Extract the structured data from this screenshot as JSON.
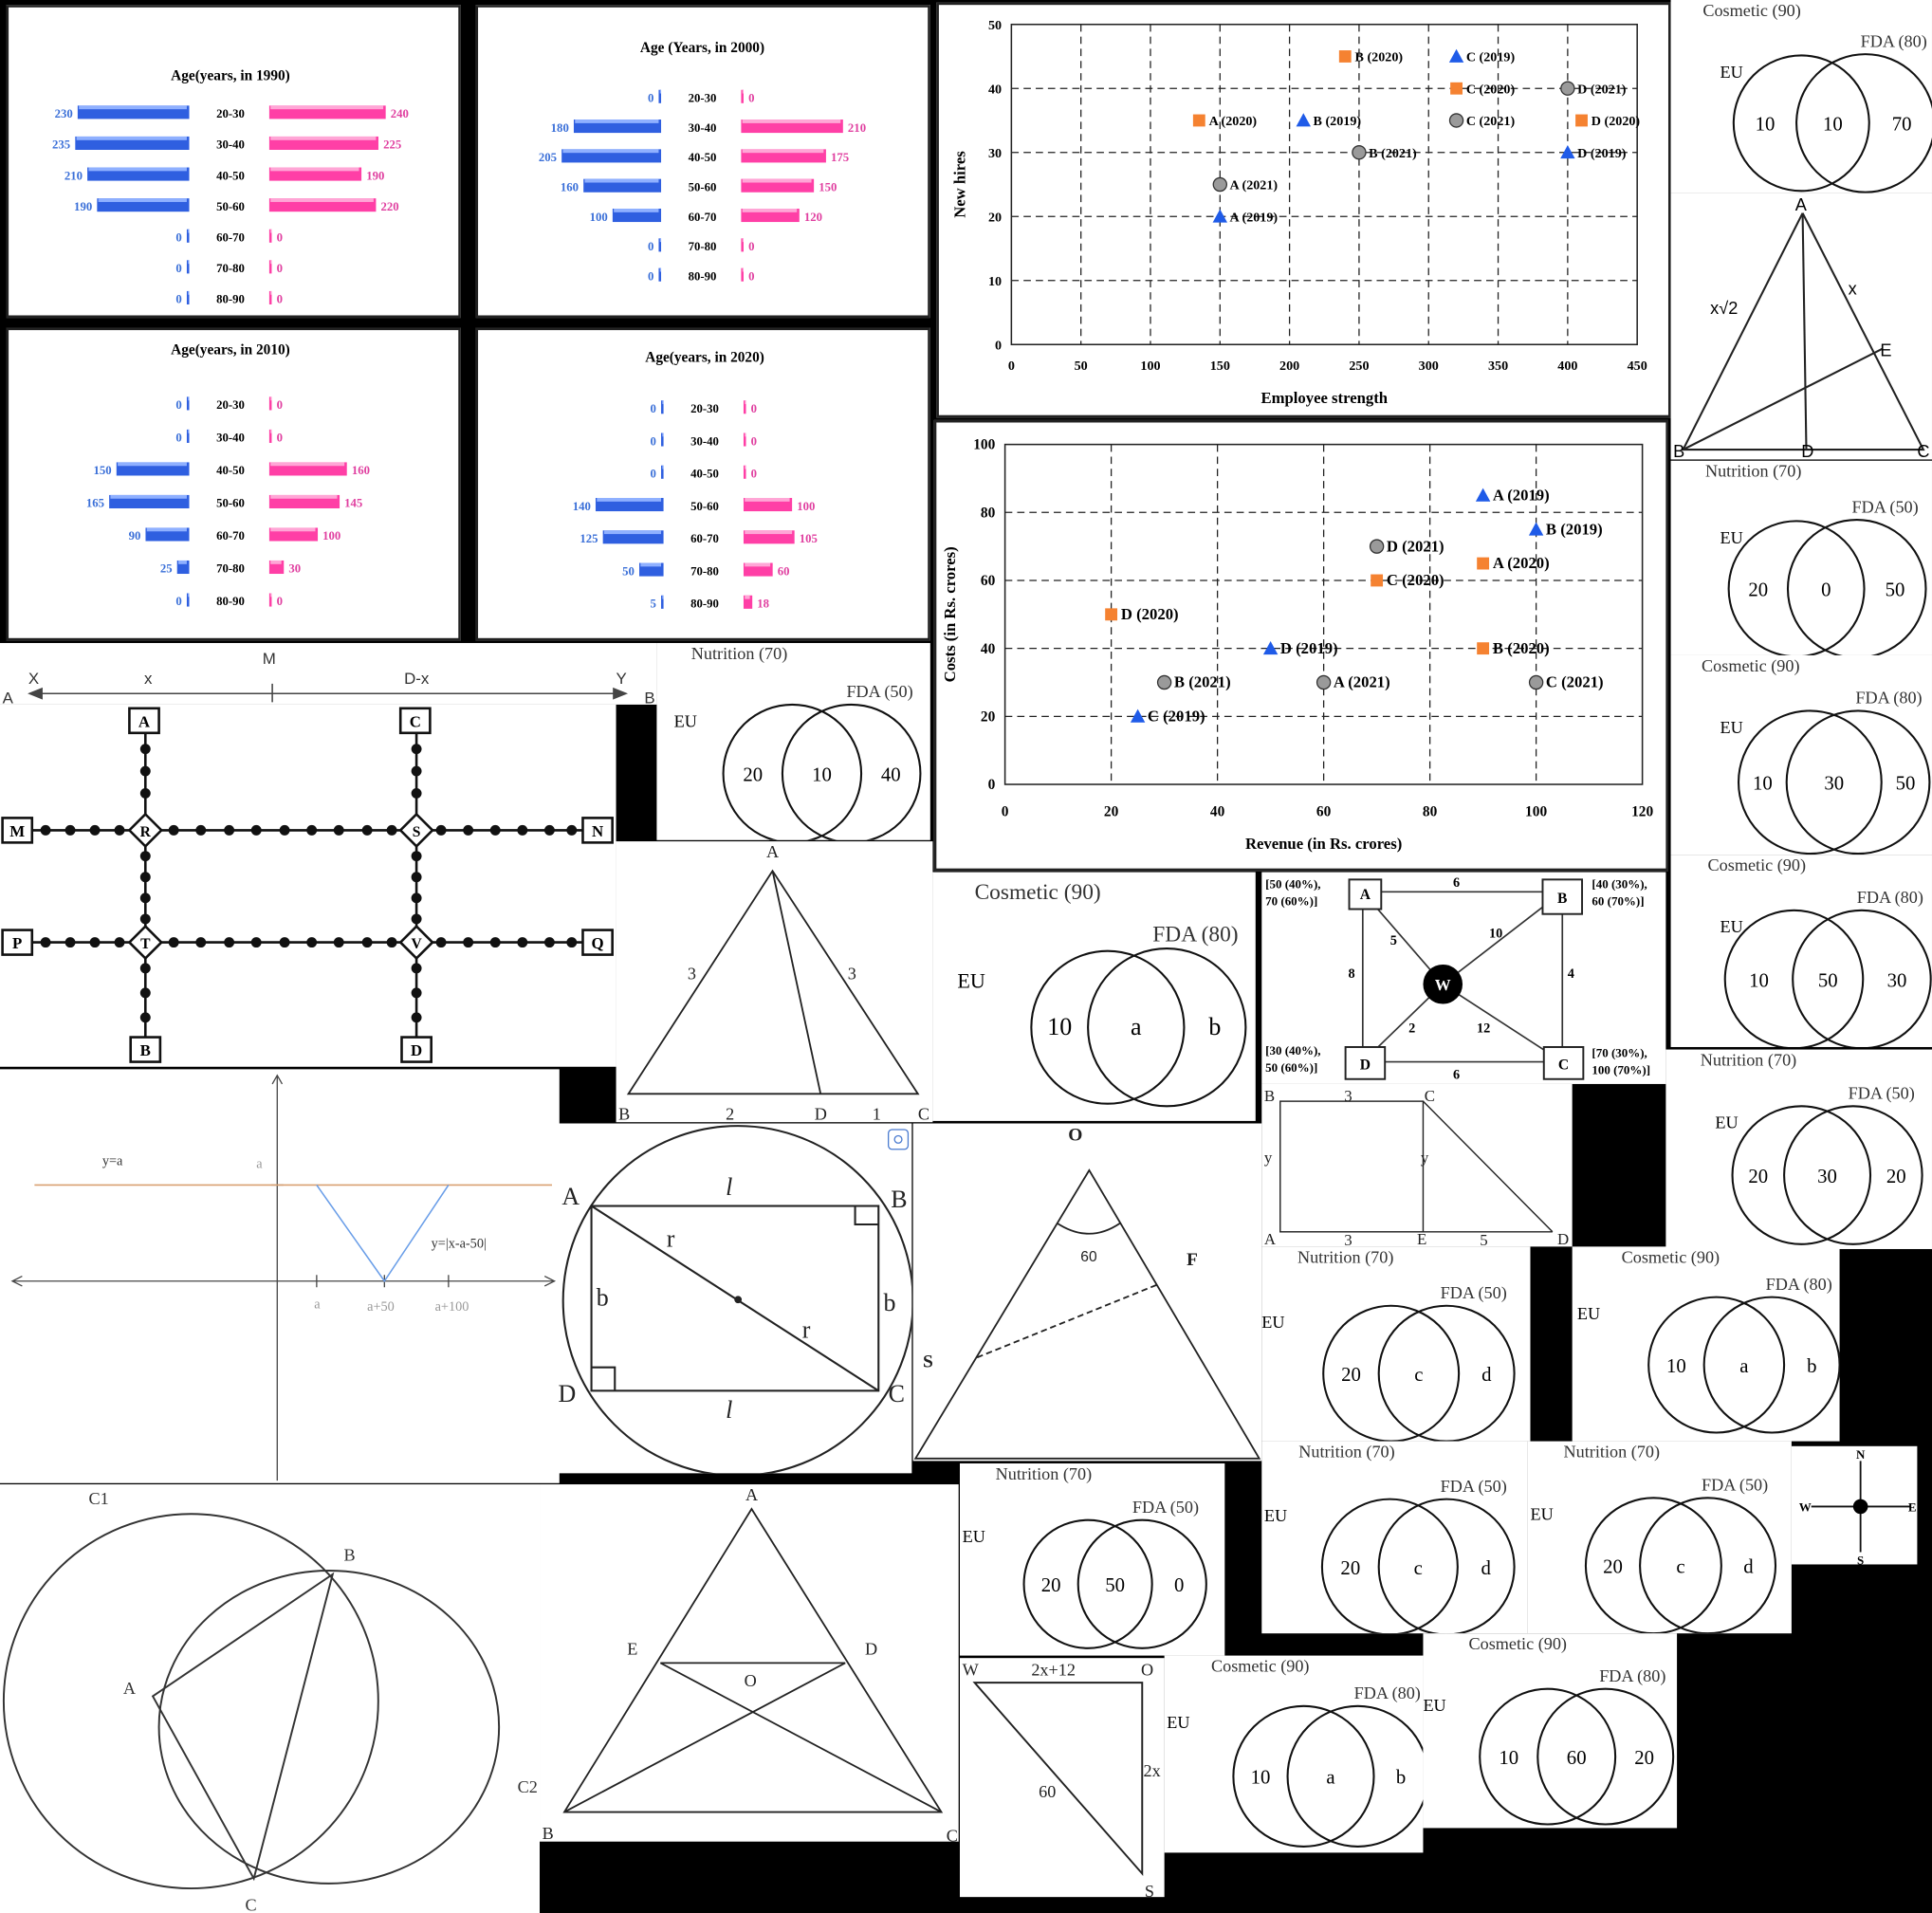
{
  "pyramids": [
    {
      "title": "Age(years, in 1990)",
      "groups": [
        "20-30",
        "30-40",
        "40-50",
        "50-60",
        "60-70",
        "70-80",
        "80-90"
      ],
      "left": [
        230,
        235,
        210,
        190,
        0,
        0,
        0
      ],
      "right": [
        240,
        225,
        190,
        220,
        0,
        0,
        0
      ]
    },
    {
      "title": "Age (Years, in 2000)",
      "groups": [
        "20-30",
        "30-40",
        "40-50",
        "50-60",
        "60-70",
        "70-80",
        "80-90"
      ],
      "left": [
        0,
        180,
        205,
        160,
        100,
        0,
        0
      ],
      "right": [
        0,
        210,
        175,
        150,
        120,
        0,
        0
      ]
    },
    {
      "title": "Age(years, in 2010)",
      "groups": [
        "20-30",
        "30-40",
        "40-50",
        "50-60",
        "60-70",
        "70-80",
        "80-90"
      ],
      "left": [
        0,
        0,
        150,
        165,
        90,
        25,
        0
      ],
      "right": [
        0,
        0,
        160,
        145,
        100,
        30,
        0
      ]
    },
    {
      "title": "Age(years, in 2020)",
      "groups": [
        "20-30",
        "30-40",
        "40-50",
        "50-60",
        "60-70",
        "70-80",
        "80-90"
      ],
      "left": [
        0,
        0,
        0,
        140,
        125,
        50,
        5
      ],
      "right": [
        0,
        0,
        0,
        100,
        105,
        60,
        18
      ]
    }
  ],
  "chart_data": [
    {
      "type": "scatter",
      "xlabel": "Employee strength",
      "ylabel": "New hires",
      "xlim": [
        0,
        450
      ],
      "ylim": [
        0,
        50
      ],
      "xticks": [
        0,
        50,
        100,
        150,
        200,
        250,
        300,
        350,
        400,
        450
      ],
      "yticks": [
        0,
        10,
        20,
        30,
        40,
        50
      ],
      "grid": true,
      "points": [
        {
          "label": "A (2019)",
          "x": 150,
          "y": 20,
          "year": 2019
        },
        {
          "label": "A (2020)",
          "x": 135,
          "y": 35,
          "year": 2020
        },
        {
          "label": "A (2021)",
          "x": 150,
          "y": 25,
          "year": 2021
        },
        {
          "label": "B (2019)",
          "x": 210,
          "y": 35,
          "year": 2019
        },
        {
          "label": "B (2020)",
          "x": 240,
          "y": 45,
          "year": 2020
        },
        {
          "label": "B (2021)",
          "x": 250,
          "y": 30,
          "year": 2021
        },
        {
          "label": "C (2019)",
          "x": 320,
          "y": 45,
          "year": 2019
        },
        {
          "label": "C (2020)",
          "x": 320,
          "y": 40,
          "year": 2020
        },
        {
          "label": "C (2021)",
          "x": 320,
          "y": 35,
          "year": 2021
        },
        {
          "label": "D (2019)",
          "x": 400,
          "y": 30,
          "year": 2019
        },
        {
          "label": "D (2020)",
          "x": 410,
          "y": 35,
          "year": 2020
        },
        {
          "label": "D (2021)",
          "x": 400,
          "y": 40,
          "year": 2021
        }
      ]
    },
    {
      "type": "scatter",
      "xlabel": "Revenue (in Rs. crores)",
      "ylabel": "Costs (in Rs. crores)",
      "xlim": [
        0,
        120
      ],
      "ylim": [
        0,
        100
      ],
      "xticks": [
        0,
        20,
        40,
        60,
        80,
        100,
        120
      ],
      "yticks": [
        0,
        20,
        40,
        60,
        80,
        100
      ],
      "grid": true,
      "points": [
        {
          "label": "A (2019)",
          "x": 90,
          "y": 85,
          "year": 2019
        },
        {
          "label": "A (2020)",
          "x": 90,
          "y": 65,
          "year": 2020
        },
        {
          "label": "A (2021)",
          "x": 60,
          "y": 30,
          "year": 2021
        },
        {
          "label": "B (2019)",
          "x": 100,
          "y": 75,
          "year": 2019
        },
        {
          "label": "B (2020)",
          "x": 90,
          "y": 40,
          "year": 2020
        },
        {
          "label": "B (2021)",
          "x": 30,
          "y": 30,
          "year": 2021
        },
        {
          "label": "C (2019)",
          "x": 25,
          "y": 20,
          "year": 2019
        },
        {
          "label": "C (2020)",
          "x": 70,
          "y": 60,
          "year": 2020
        },
        {
          "label": "C (2021)",
          "x": 100,
          "y": 30,
          "year": 2021
        },
        {
          "label": "D (2019)",
          "x": 50,
          "y": 40,
          "year": 2019
        },
        {
          "label": "D (2020)",
          "x": 20,
          "y": 50,
          "year": 2020
        },
        {
          "label": "D (2021)",
          "x": 70,
          "y": 70,
          "year": 2021
        }
      ]
    }
  ],
  "colors": {
    "male": "#2f5fe0",
    "female": "#ff3fa6",
    "male_label": "#3a6fd8",
    "female_label": "#e040a0",
    "y2019": "#1f5be8",
    "y2020": "#f58231",
    "y2021": "#9a9a9a"
  },
  "venn": {
    "t1": {
      "title": "Cosmetic (90)",
      "left": "EU",
      "right": "FDA (80)",
      "a": "10",
      "b": "10",
      "c": "70"
    },
    "t2": {
      "title": "Nutrition (70)",
      "left": "EU",
      "right": "FDA (50)",
      "a": "20",
      "b": "0",
      "c": "50"
    },
    "t3": {
      "title": "Cosmetic (90)",
      "left": "EU",
      "right": "FDA (80)",
      "a": "10",
      "b": "30",
      "c": "50"
    },
    "t4": {
      "title": "Cosmetic (90)",
      "left": "EU",
      "right": "FDA (80)",
      "a": "10",
      "b": "50",
      "c": "30"
    },
    "t5": {
      "title": "Nutrition (70)",
      "left": "EU",
      "right": "FDA (50)",
      "a": "20",
      "b": "30",
      "c": "20"
    },
    "t6": {
      "title": "Nutrition (70)",
      "left": "EU",
      "right": "FDA (50)",
      "a": "20",
      "b": "10",
      "c": "40"
    },
    "t7": {
      "title": "Cosmetic (90)",
      "left": "EU",
      "right": "FDA (80)",
      "a": "10",
      "b": "a",
      "c": "b"
    },
    "t8": {
      "title": "Nutrition (70)",
      "left": "EU",
      "right": "FDA (50)",
      "a": "20",
      "b": "c",
      "c": "d"
    },
    "t9": {
      "title": "Cosmetic (90)",
      "left": "EU",
      "right": "FDA (80)",
      "a": "10",
      "b": "a",
      "c": "b"
    },
    "t10": {
      "title": "Nutrition (70)",
      "left": "EU",
      "right": "FDA (50)",
      "a": "20",
      "b": "50",
      "c": "0"
    },
    "t11": {
      "title": "Nutrition (70)",
      "left": "EU",
      "right": "FDA (50)",
      "a": "20",
      "b": "c",
      "c": "d"
    },
    "t12": {
      "title": "Nutrition (70)",
      "left": "EU",
      "right": "FDA (50)",
      "a": "20",
      "b": "c",
      "c": "d"
    },
    "t13": {
      "title": "Cosmetic (90)",
      "left": "EU",
      "right": "FDA (80)",
      "a": "10",
      "b": "a",
      "c": "b"
    },
    "t14": {
      "title": "Cosmetic (90)",
      "left": "EU",
      "right": "FDA (80)",
      "a": "10",
      "b": "60",
      "c": "20"
    }
  },
  "tri_x": {
    "A": "A",
    "B": "B",
    "C": "C",
    "D": "D",
    "E": "E",
    "left": "x√2",
    "right": "x"
  },
  "segment": {
    "A": "A",
    "B": "B",
    "X": "X",
    "Y": "Y",
    "M": "M",
    "x": "x",
    "dx": "D-x"
  },
  "grid_map": {
    "A": "A",
    "C": "C",
    "M": "M",
    "N": "N",
    "P": "P",
    "Q": "Q",
    "B": "B",
    "D": "D",
    "R": "R",
    "S": "S",
    "T": "T",
    "V": "V"
  },
  "tri_abc": {
    "A": "A",
    "B": "B",
    "C": "C",
    "D": "D",
    "s1": "3",
    "s2": "3",
    "b1": "2",
    "b2": "1"
  },
  "network": {
    "A": "A",
    "B": "B",
    "C": "C",
    "D": "D",
    "W": "W",
    "ab": "6",
    "bc": "4",
    "cd": "6",
    "da": "8",
    "aw": "5",
    "bw": "10",
    "cw": "12",
    "dw": "2",
    "ann_a": [
      "[50 (40%),",
      "70  (60%)]"
    ],
    "ann_b": [
      "[40 (30%),",
      "60 (70%)]"
    ],
    "ann_d": [
      "[30 (40%),",
      "50 (60%)]"
    ],
    "ann_c": [
      "[70 (30%),",
      "100 (70%)]"
    ]
  },
  "graph_abs": {
    "line": "y=a",
    "curve": "y=|x-a-50|",
    "ya": "a",
    "t1": "a",
    "t2": "a+50",
    "t3": "a+100"
  },
  "rect_circle": {
    "A": "A",
    "B": "B",
    "C": "C",
    "D": "D",
    "l1": "l",
    "l2": "l",
    "b1": "b",
    "b2": "b",
    "r1": "r",
    "r2": "r"
  },
  "tri_osf": {
    "O": "O",
    "S": "S",
    "F": "F",
    "angle": "60"
  },
  "rect_bcde": {
    "B": "B",
    "C": "C",
    "A": "A",
    "E": "E",
    "D": "D",
    "top": "3",
    "bot1": "3",
    "bot2": "5",
    "y1": "y",
    "y2": "y"
  },
  "circles_c": {
    "C1": "C1",
    "C2": "C2",
    "A": "A",
    "B": "B",
    "C": "C"
  },
  "tri_abcde": {
    "A": "A",
    "B": "B",
    "C": "C",
    "D": "D",
    "E": "E",
    "O": "O"
  },
  "tri_wos": {
    "W": "W",
    "O": "O",
    "S": "S",
    "top": "2x+12",
    "right": "2x",
    "angle": "60"
  },
  "compass": {
    "N": "N",
    "S": "S",
    "E": "E",
    "W": "W"
  }
}
